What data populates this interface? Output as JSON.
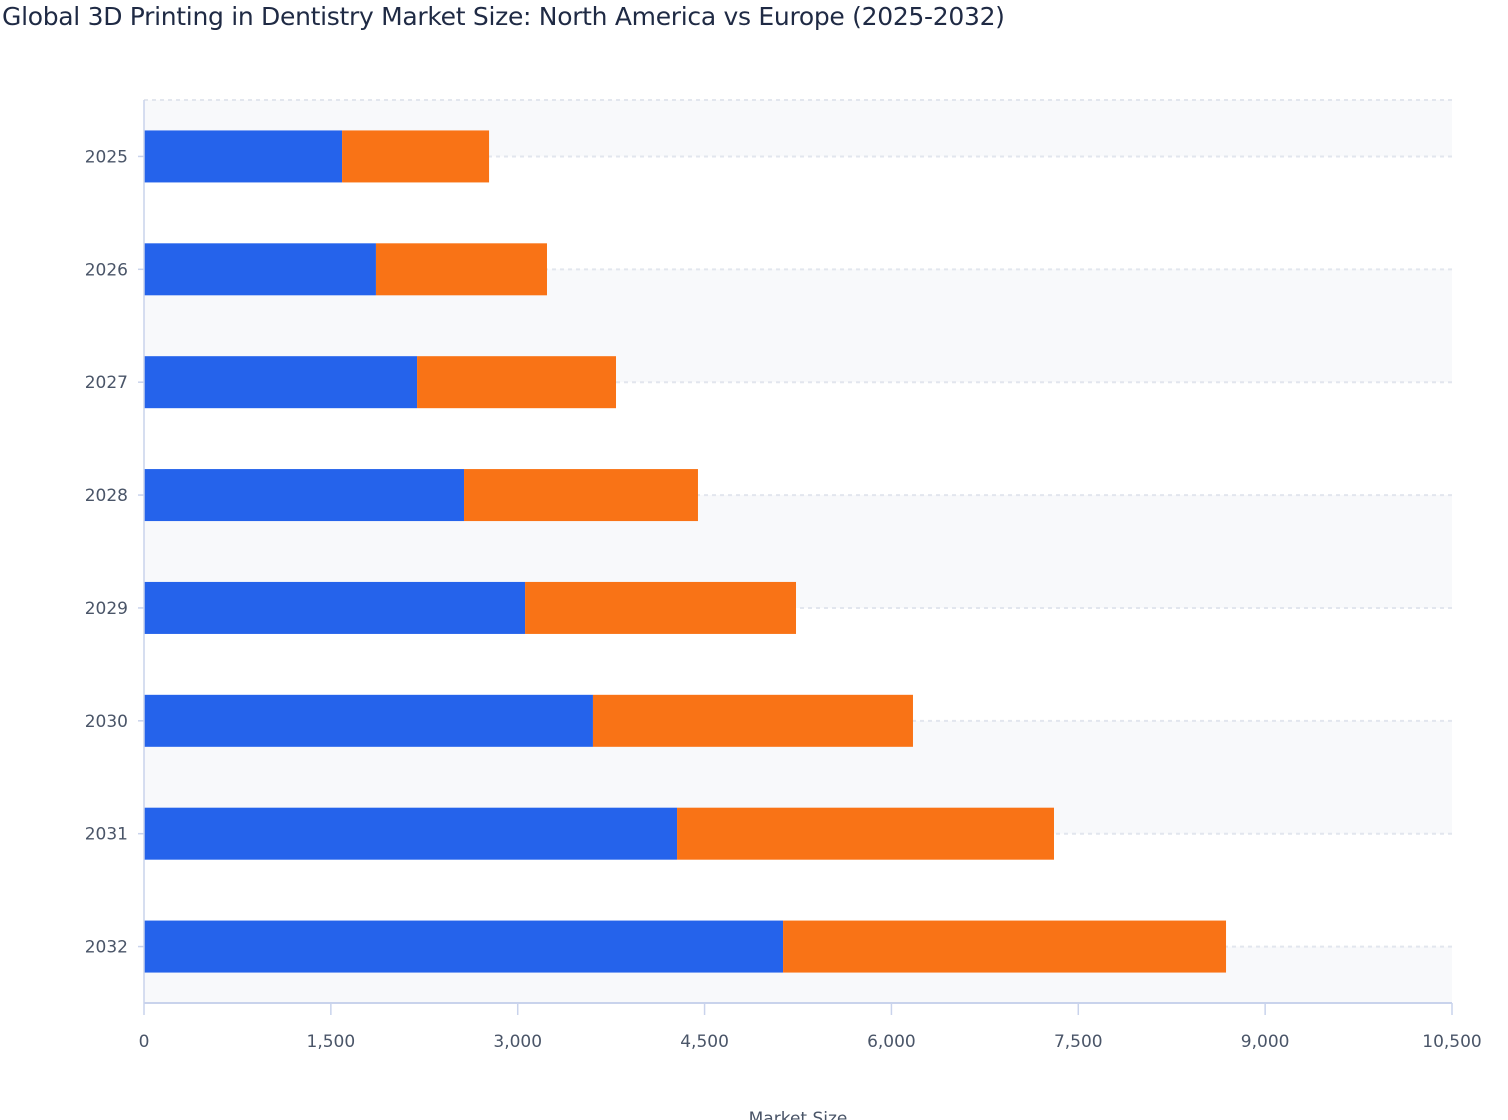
{
  "chart_data": {
    "type": "bar",
    "orientation": "horizontal",
    "stacked": true,
    "title": "Global 3D Printing in Dentistry Market Size: North America vs Europe (2025-2032)",
    "xlabel": "Market Size",
    "ylabel": "",
    "categories": [
      "2025",
      "2026",
      "2027",
      "2028",
      "2029",
      "2030",
      "2031",
      "2032"
    ],
    "series": [
      {
        "values": [
          1590,
          1862,
          2192,
          2569,
          3059,
          3604,
          4279,
          5130
        ],
        "color": "#2563eb"
      },
      {
        "values": [
          1180,
          1373,
          1597,
          1878,
          2175,
          2569,
          3026,
          3556
        ],
        "color": "#f97316"
      }
    ],
    "xlim": [
      0,
      10500
    ],
    "xticks": [
      0,
      1500,
      3000,
      4500,
      6000,
      7500,
      9000,
      10500
    ],
    "xtick_labels": [
      "0",
      "1,500",
      "3,000",
      "4,500",
      "6,000",
      "7,500",
      "9,000",
      "10,500"
    ],
    "grid": true,
    "legend": "none",
    "band_color": "#f8f9fb"
  }
}
